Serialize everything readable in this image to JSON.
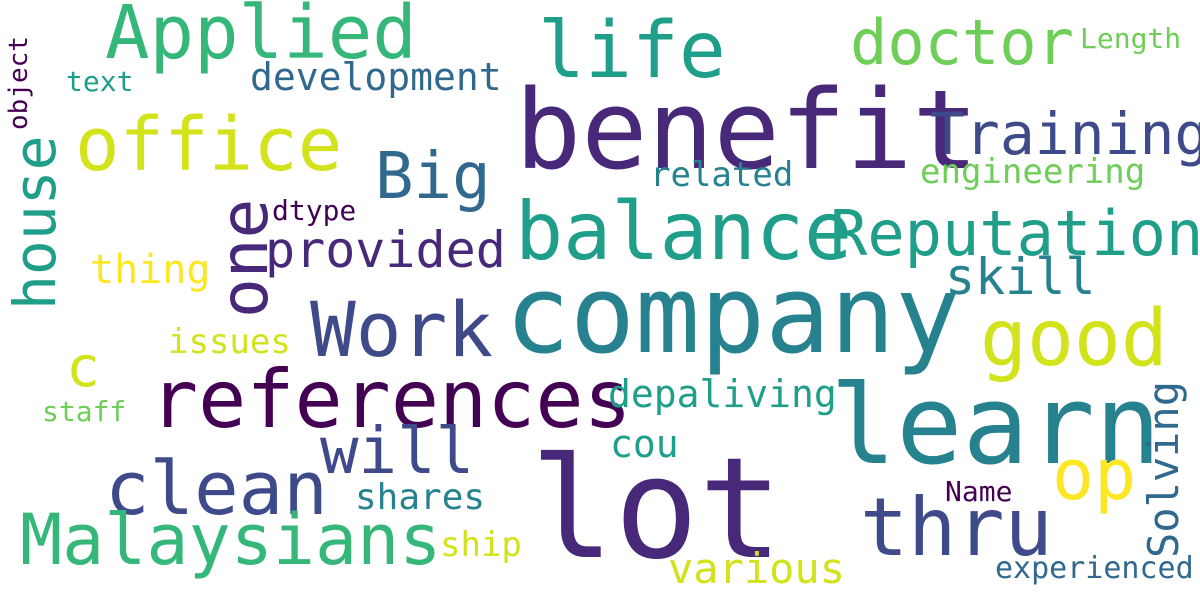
{
  "background": "#ffffff",
  "palette": {
    "purple_dark": "#440154",
    "purple": "#482878",
    "indigo": "#3e4a89",
    "blue": "#31688e",
    "teal": "#26828e",
    "green_teal": "#1f9e89",
    "green": "#35b779",
    "green_light": "#6ece58",
    "lime": "#b5de2b",
    "yellow": "#fde725"
  },
  "words": {
    "applied": "Applied",
    "life": "life",
    "doctor": "doctor",
    "length": "Length",
    "object": "object",
    "text": "text",
    "development": "development",
    "benefit": "benefit",
    "office": "office",
    "training": "Training",
    "house": "house",
    "big": "Big",
    "related": "related",
    "engineering": "engineering",
    "one": "one",
    "dtype": "dtype",
    "balance": "balance",
    "reputation": "Reputation",
    "provided": "provided",
    "thing": "thing",
    "skill": "skill",
    "company": "company",
    "work": "Work",
    "issues": "issues",
    "good": "good",
    "c": "c",
    "references": "references",
    "depaliving": "depaliving",
    "learn": "learn",
    "staff": "staff",
    "will": "will",
    "cou": "cou",
    "solving": "Solving",
    "clean": "clean",
    "op": "op",
    "lot": "lot",
    "shares": "shares",
    "name": "Name",
    "thru": "thru",
    "malaysians": "Malaysians",
    "ship": "ship",
    "various": "various",
    "experienced": "experienced"
  }
}
